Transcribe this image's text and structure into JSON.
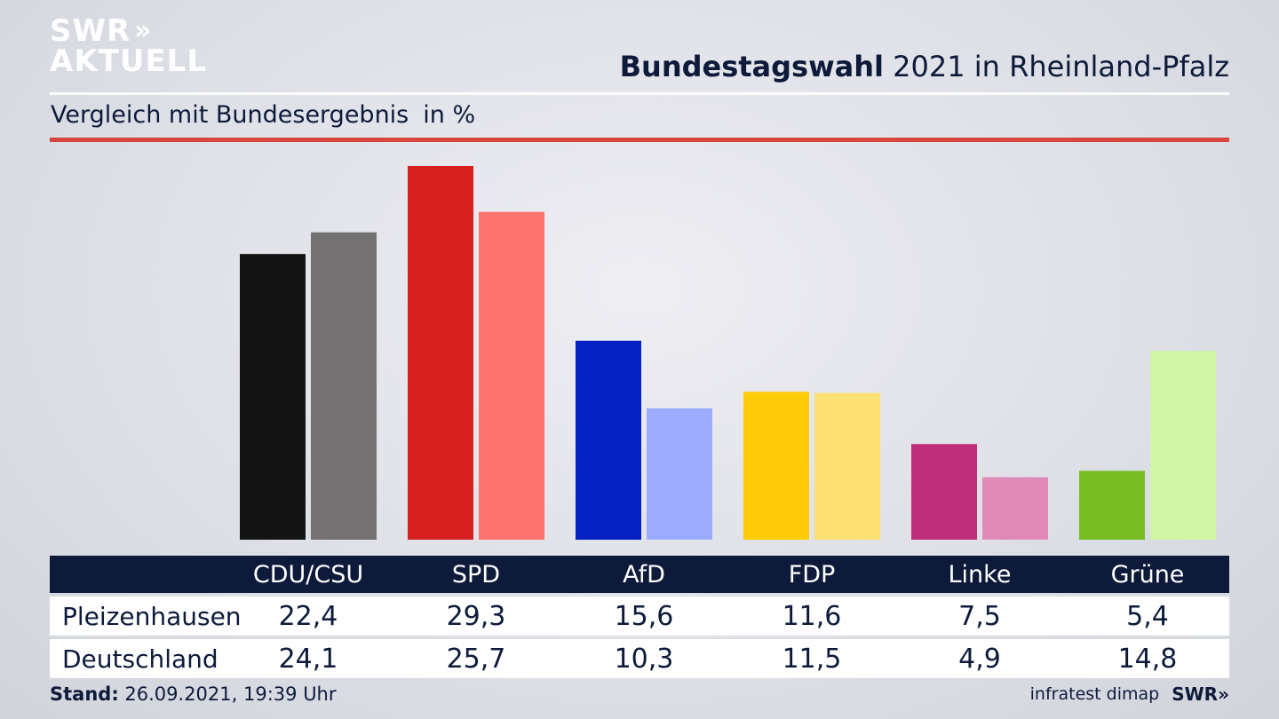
{
  "logo": {
    "line1": "SWR",
    "line2": "AKTUELL",
    "chevrons": "»"
  },
  "title": {
    "bold": "Bundestagswahl",
    "rest": "2021 in Rheinland-Pfalz"
  },
  "subtitle": {
    "text": "Vergleich mit Bundesergebnis",
    "unit": "in %"
  },
  "colors": {
    "local": [
      "#141414",
      "#d61f1f",
      "#0521c4",
      "#ffcc0a",
      "#bd2f78",
      "#77bd22"
    ],
    "national": [
      "#737171",
      "#ff736e",
      "#9dabff",
      "#fde071",
      "#e08ab8",
      "#d1f5a6"
    ],
    "accent_red": "#d6463a",
    "navy": "#0e1a3a"
  },
  "chart_data": {
    "type": "bar",
    "title": "Bundestagswahl 2021 in Rheinland-Pfalz",
    "subtitle": "Vergleich mit Bundesergebnis",
    "ylabel": "in %",
    "categories": [
      "CDU/CSU",
      "SPD",
      "AfD",
      "FDP",
      "Linke",
      "Grüne"
    ],
    "series": [
      {
        "name": "Pleizenhausen",
        "values": [
          22.4,
          29.3,
          15.6,
          11.6,
          7.5,
          5.4
        ],
        "labels": [
          "22,4",
          "29,3",
          "15,6",
          "11,6",
          "7,5",
          "5,4"
        ]
      },
      {
        "name": "Deutschland",
        "values": [
          24.1,
          25.7,
          10.3,
          11.5,
          4.9,
          14.8
        ],
        "labels": [
          "24,1",
          "25,7",
          "10,3",
          "11,5",
          "4,9",
          "14,8"
        ]
      }
    ],
    "ylim": [
      0,
      29.3
    ],
    "grid": false,
    "legend": "table-below"
  },
  "footer": {
    "stand_label": "Stand:",
    "stand_value": "26.09.2021, 19:39 Uhr",
    "source": "infratest dimap",
    "brand": "SWR»"
  }
}
